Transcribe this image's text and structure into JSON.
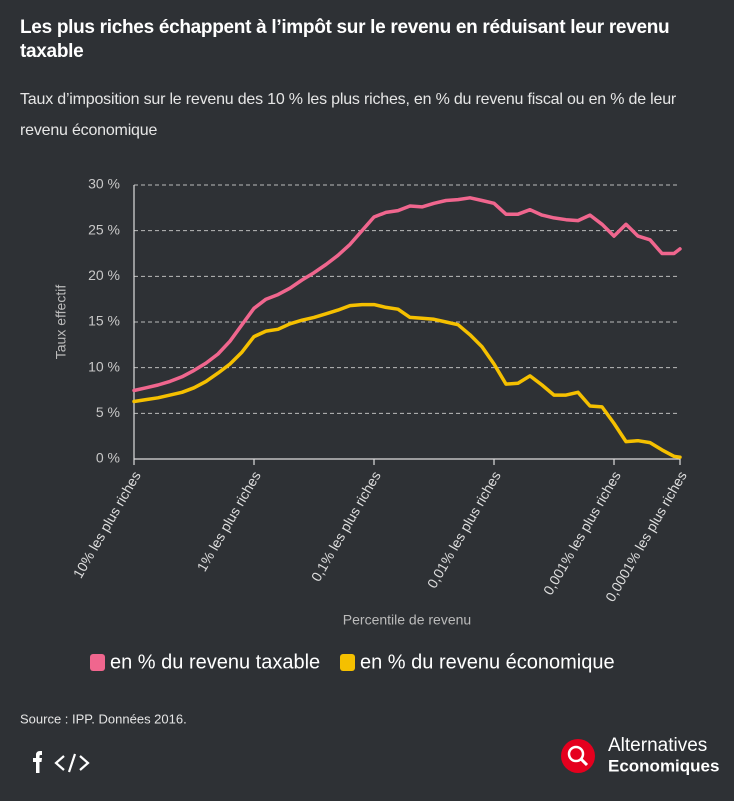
{
  "chart_data": {
    "type": "line",
    "title": "Les plus riches échappent à l’impôt sur le revenu en réduisant leur revenu taxable",
    "subtitle": "Taux d’imposition sur le revenu des 10 % les plus riches, en % du revenu fiscal ou en % de leur revenu économique",
    "y_label": "Taux effectif",
    "x_label": "Percentile de revenu",
    "x": [
      0,
      0.1,
      0.2,
      0.3,
      0.4,
      0.5,
      0.6,
      0.7,
      0.8,
      0.9,
      1,
      1.1,
      1.2,
      1.3,
      1.4,
      1.5,
      1.6,
      1.7,
      1.8,
      1.9,
      2,
      2.1,
      2.2,
      2.3,
      2.4,
      2.5,
      2.6,
      2.7,
      2.8,
      2.9,
      3,
      3.1,
      3.2,
      3.3,
      3.4,
      3.5,
      3.6,
      3.7,
      3.8,
      3.9,
      4,
      4.1,
      4.2,
      4.3,
      4.4,
      4.5,
      4.55
    ],
    "series": [
      {
        "name": "en % du revenu taxable",
        "color": "#f0668e",
        "values": [
          7.5,
          7.8,
          8.1,
          8.5,
          9.0,
          9.7,
          10.5,
          11.5,
          12.9,
          14.7,
          16.5,
          17.5,
          18.0,
          18.7,
          19.6,
          20.4,
          21.3,
          22.3,
          23.5,
          25.0,
          26.5,
          27.0,
          27.2,
          27.7,
          27.6,
          28.0,
          28.3,
          28.4,
          28.6,
          28.3,
          28.0,
          26.8,
          26.8,
          27.3,
          26.7,
          26.4,
          26.2,
          26.1,
          26.7,
          25.7,
          24.4,
          25.7,
          24.4,
          24.0,
          22.5,
          22.5,
          23.0
        ]
      },
      {
        "name": "en % du revenu économique",
        "color": "#f5c000",
        "values": [
          6.3,
          6.5,
          6.7,
          7.0,
          7.3,
          7.8,
          8.5,
          9.4,
          10.4,
          11.7,
          13.4,
          14.0,
          14.2,
          14.8,
          15.2,
          15.5,
          15.9,
          16.3,
          16.8,
          16.9,
          16.9,
          16.6,
          16.4,
          15.5,
          15.4,
          15.3,
          15.0,
          14.7,
          13.6,
          12.3,
          10.4,
          8.2,
          8.3,
          9.1,
          8.1,
          7.0,
          7.0,
          7.3,
          5.8,
          5.7,
          3.9,
          1.9,
          2.0,
          1.8,
          1.0,
          0.3,
          0.2
        ]
      }
    ],
    "xlim": [
      0,
      4.55
    ],
    "xticks": [
      {
        "value": 0,
        "label": "10% les plus riches"
      },
      {
        "value": 1,
        "label": "1% les plus riches"
      },
      {
        "value": 2,
        "label": "0,1% les plus riches"
      },
      {
        "value": 3,
        "label": "0,01% les plus riches"
      },
      {
        "value": 4,
        "label": "0,001% les plus riches"
      },
      {
        "value": 4.55,
        "label": "0,0001% les plus riches"
      }
    ],
    "ylim": [
      0,
      30
    ],
    "yticks": [
      {
        "value": 0,
        "label": "0 %"
      },
      {
        "value": 5,
        "label": "5 %"
      },
      {
        "value": 10,
        "label": "10 %"
      },
      {
        "value": 15,
        "label": "15 %"
      },
      {
        "value": 20,
        "label": "20 %"
      },
      {
        "value": 25,
        "label": "25 %"
      },
      {
        "value": 30,
        "label": "30 %"
      }
    ],
    "grid": true,
    "legend": "bottom",
    "source": "Source : IPP. Données 2016.",
    "brand": [
      "Alternatives",
      "Economiques"
    ]
  }
}
